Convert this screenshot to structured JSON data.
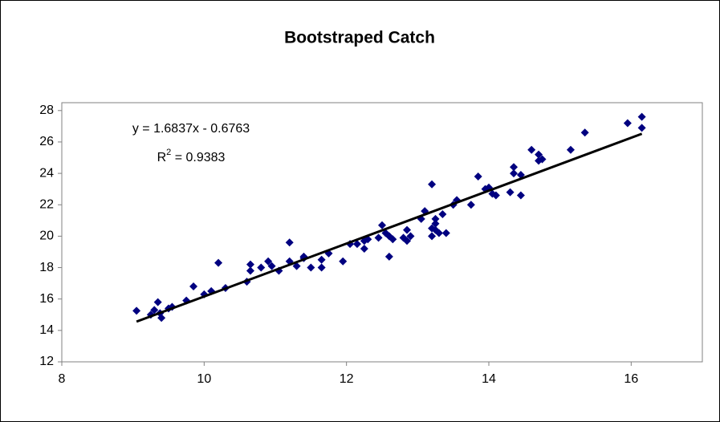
{
  "chart_data": {
    "type": "scatter",
    "title": "Bootstraped Catch",
    "xlim": [
      8,
      17
    ],
    "xticks": [
      8,
      10,
      12,
      14,
      16
    ],
    "ylim": [
      12,
      28.5
    ],
    "yticks": [
      12,
      14,
      16,
      18,
      20,
      22,
      24,
      26,
      28
    ],
    "grid": false,
    "series": [
      {
        "color": "#000080",
        "x": [
          9.05,
          9.25,
          9.3,
          9.35,
          9.4,
          9.38,
          9.5,
          9.55,
          9.75,
          9.85,
          10.0,
          10.1,
          10.2,
          10.3,
          10.6,
          10.65,
          10.65,
          10.8,
          10.9,
          10.95,
          11.05,
          11.2,
          11.2,
          11.3,
          11.4,
          11.4,
          11.5,
          11.65,
          11.65,
          11.75,
          11.95,
          12.05,
          12.15,
          12.25,
          12.25,
          12.3,
          12.45,
          12.5,
          12.55,
          12.6,
          12.6,
          12.65,
          12.8,
          12.85,
          12.85,
          12.9,
          13.05,
          13.1,
          13.2,
          13.2,
          13.2,
          13.25,
          13.25,
          13.25,
          13.3,
          13.35,
          13.4,
          13.5,
          13.55,
          13.75,
          13.85,
          13.95,
          14.0,
          14.05,
          14.1,
          14.3,
          14.35,
          14.35,
          14.45,
          14.45,
          14.6,
          14.7,
          14.7,
          14.75,
          15.15,
          15.35,
          15.95,
          16.15,
          16.15
        ],
        "values": [
          15.25,
          15.0,
          15.3,
          15.8,
          14.8,
          15.1,
          15.4,
          15.5,
          15.9,
          16.8,
          16.3,
          16.5,
          18.3,
          16.7,
          17.1,
          17.8,
          18.2,
          18.0,
          18.4,
          18.1,
          17.8,
          18.4,
          19.6,
          18.1,
          18.6,
          18.7,
          18.0,
          18.5,
          18.0,
          18.9,
          18.4,
          19.5,
          19.5,
          19.2,
          19.7,
          19.8,
          19.9,
          20.7,
          20.2,
          18.7,
          20.0,
          19.8,
          19.9,
          20.4,
          19.7,
          20.0,
          21.1,
          21.6,
          20.0,
          20.5,
          23.3,
          20.4,
          20.8,
          21.1,
          20.2,
          21.4,
          20.2,
          22.0,
          22.3,
          22.0,
          23.8,
          23.0,
          23.1,
          22.7,
          22.6,
          22.8,
          24.4,
          24.0,
          23.9,
          22.6,
          25.5,
          24.8,
          25.2,
          24.9,
          25.5,
          26.6,
          27.2,
          26.9,
          27.6
        ]
      }
    ],
    "trendline": {
      "color": "#000000",
      "x": [
        9.05,
        16.15
      ],
      "values": [
        14.56,
        26.52
      ]
    },
    "annotations": [
      "y = 1.6837x - 0.6763"
    ],
    "r_squared": [
      "R",
      "2",
      " = 0.9383"
    ]
  }
}
